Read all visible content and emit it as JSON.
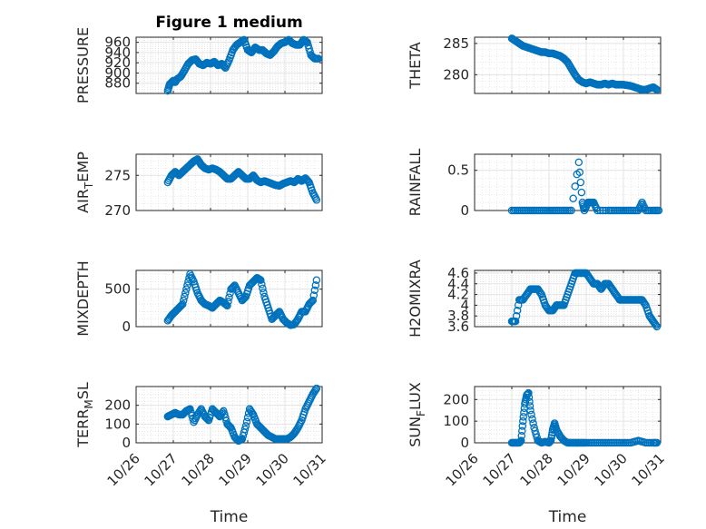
{
  "chart_data": {
    "type": "scatter",
    "title": "Figure 1 medium",
    "marker_color": "#0072BD",
    "xlabel": "Time",
    "x_tick_labels": [
      "10/26",
      "10/27",
      "10/28",
      "10/29",
      "10/30",
      "10/31"
    ],
    "xlim": [
      26,
      31
    ],
    "grid": true,
    "subplots": [
      {
        "id": "pressure",
        "ylabel": "PRESSURE",
        "ylim": [
          860,
          970
        ],
        "yticks": [
          880,
          900,
          920,
          940,
          960
        ],
        "x": [
          26.85,
          26.9,
          27.0,
          27.05,
          27.1,
          27.2,
          27.3,
          27.4,
          27.5,
          27.6,
          27.7,
          27.8,
          27.9,
          28.0,
          28.1,
          28.2,
          28.3,
          28.4,
          28.5,
          28.6,
          28.7,
          28.8,
          28.9,
          29.0,
          29.1,
          29.2,
          29.3,
          29.4,
          29.5,
          29.6,
          29.7,
          29.8,
          29.9,
          30.0,
          30.1,
          30.2,
          30.3,
          30.4,
          30.5,
          30.6,
          30.7,
          30.8,
          30.9
        ],
        "y": [
          865,
          878,
          885,
          882,
          888,
          893,
          905,
          918,
          925,
          927,
          918,
          915,
          920,
          918,
          922,
          915,
          918,
          910,
          925,
          945,
          955,
          960,
          965,
          945,
          940,
          950,
          945,
          945,
          938,
          935,
          942,
          952,
          958,
          960,
          965,
          958,
          955,
          955,
          965,
          960,
          935,
          928,
          928
        ]
      },
      {
        "id": "theta",
        "ylabel": "THETA",
        "ylim": [
          277,
          286
        ],
        "yticks": [
          280,
          285
        ],
        "x": [
          27.0,
          27.1,
          27.2,
          27.3,
          27.4,
          27.5,
          27.6,
          27.7,
          27.8,
          27.9,
          28.0,
          28.1,
          28.2,
          28.3,
          28.4,
          28.5,
          28.6,
          28.7,
          28.8,
          28.9,
          29.0,
          29.1,
          29.2,
          29.3,
          29.4,
          29.5,
          29.6,
          29.7,
          29.8,
          29.9,
          30.0,
          30.1,
          30.2,
          30.3,
          30.4,
          30.5,
          30.6,
          30.7,
          30.8,
          30.9
        ],
        "y": [
          285.8,
          285.4,
          285,
          284.6,
          284.4,
          284.2,
          284,
          283.8,
          283.6,
          283.6,
          283.4,
          283.4,
          283.2,
          283.0,
          282.6,
          282.0,
          281,
          280,
          279.2,
          278.8,
          278.6,
          278.8,
          278.6,
          278.4,
          278.4,
          278.6,
          278.4,
          278.6,
          278.4,
          278.4,
          278.4,
          278.3,
          278.2,
          278,
          277.8,
          277.6,
          277.6,
          277.8,
          278,
          277.6
        ]
      },
      {
        "id": "air_temp",
        "ylabel": "AIRTEMP",
        "ylabel_main": "AIR",
        "ylabel_sub": "T",
        "ylabel_rest": "EMP",
        "ylim": [
          270,
          278
        ],
        "yticks": [
          270,
          275
        ],
        "x": [
          26.85,
          26.95,
          27.05,
          27.15,
          27.25,
          27.35,
          27.45,
          27.55,
          27.65,
          27.75,
          27.85,
          27.95,
          28.05,
          28.15,
          28.25,
          28.35,
          28.45,
          28.55,
          28.65,
          28.75,
          28.85,
          28.95,
          29.05,
          29.15,
          29.25,
          29.35,
          29.45,
          29.55,
          29.65,
          29.75,
          29.85,
          29.95,
          30.05,
          30.15,
          30.25,
          30.35,
          30.45,
          30.55,
          30.65,
          30.75,
          30.85
        ],
        "y": [
          274,
          275,
          275.5,
          275,
          275.5,
          276,
          276.5,
          277,
          277.3,
          276.5,
          276,
          275.8,
          276,
          275.8,
          275.5,
          275,
          274.5,
          274.5,
          275,
          275.5,
          275,
          274.5,
          274.5,
          275,
          274.3,
          274,
          274.2,
          274,
          273.8,
          273.6,
          273.5,
          273.8,
          274,
          274.2,
          274,
          274.5,
          274.2,
          274.6,
          274,
          272.5,
          271.5
        ]
      },
      {
        "id": "rainfall",
        "ylabel": "RAINFALL",
        "ylim": [
          0,
          0.7
        ],
        "yticks": [
          0,
          0.5
        ],
        "x": [
          27.0,
          27.2,
          27.4,
          27.6,
          27.8,
          28.0,
          28.2,
          28.4,
          28.6,
          28.8,
          28.9,
          28.95,
          29.05,
          29.1,
          29.2,
          29.3,
          29.6,
          29.8,
          30.0,
          30.2,
          30.4,
          30.5,
          30.6,
          30.8,
          30.95
        ],
        "y": [
          0,
          0,
          0,
          0,
          0,
          0,
          0,
          0,
          0,
          0.6,
          0.1,
          0,
          0.1,
          0.1,
          0.1,
          0,
          0,
          0,
          0,
          0,
          0,
          0.1,
          0,
          0,
          0
        ]
      },
      {
        "id": "mixdepth",
        "ylabel": "MIXDEPTH",
        "ylim": [
          0,
          750
        ],
        "yticks": [
          0,
          500
        ],
        "x": [
          26.85,
          26.95,
          27.05,
          27.15,
          27.25,
          27.35,
          27.45,
          27.55,
          27.65,
          27.75,
          27.85,
          27.95,
          28.05,
          28.15,
          28.25,
          28.35,
          28.45,
          28.55,
          28.65,
          28.75,
          28.85,
          28.95,
          29.05,
          29.15,
          29.25,
          29.35,
          29.45,
          29.55,
          29.65,
          29.75,
          29.85,
          29.95,
          30.05,
          30.15,
          30.25,
          30.35,
          30.45,
          30.55,
          30.65,
          30.75,
          30.85
        ],
        "y": [
          80,
          150,
          200,
          250,
          300,
          500,
          700,
          600,
          450,
          350,
          300,
          280,
          250,
          300,
          350,
          320,
          280,
          500,
          550,
          450,
          350,
          400,
          550,
          600,
          650,
          620,
          400,
          250,
          100,
          150,
          200,
          100,
          50,
          20,
          30,
          100,
          200,
          200,
          300,
          350,
          620
        ]
      },
      {
        "id": "h2omixra",
        "ylabel": "H2OMIXRA",
        "ylim": [
          3.6,
          4.65
        ],
        "yticks": [
          3.6,
          3.8,
          4,
          4.2,
          4.4,
          4.6
        ],
        "x": [
          27.0,
          27.1,
          27.2,
          27.3,
          27.4,
          27.5,
          27.6,
          27.7,
          27.8,
          27.9,
          28.0,
          28.1,
          28.2,
          28.3,
          28.4,
          28.5,
          28.6,
          28.7,
          28.8,
          28.9,
          29.0,
          29.1,
          29.2,
          29.3,
          29.4,
          29.5,
          29.6,
          29.7,
          29.8,
          29.9,
          30.0,
          30.1,
          30.2,
          30.3,
          30.4,
          30.5,
          30.6,
          30.7,
          30.8,
          30.9
        ],
        "y": [
          3.7,
          3.7,
          4.1,
          4.1,
          4.2,
          4.3,
          4.3,
          4.3,
          4.2,
          4.0,
          3.9,
          3.9,
          4.0,
          4.0,
          4.0,
          4.2,
          4.4,
          4.6,
          4.6,
          4.6,
          4.6,
          4.5,
          4.4,
          4.4,
          4.3,
          4.4,
          4.4,
          4.3,
          4.2,
          4.1,
          4.1,
          4.1,
          4.1,
          4.1,
          4.1,
          4.1,
          4.0,
          3.8,
          3.7,
          3.6
        ]
      },
      {
        "id": "terr_msl",
        "ylabel": "TERRMSL",
        "ylabel_main": "TERR",
        "ylabel_sub": "M",
        "ylabel_rest": "SL",
        "ylim": [
          0,
          300
        ],
        "yticks": [
          0,
          100,
          200
        ],
        "x": [
          26.85,
          26.95,
          27.05,
          27.15,
          27.25,
          27.35,
          27.45,
          27.55,
          27.65,
          27.75,
          27.85,
          27.95,
          28.05,
          28.15,
          28.25,
          28.35,
          28.45,
          28.55,
          28.65,
          28.75,
          28.85,
          28.95,
          29.05,
          29.15,
          29.25,
          29.35,
          29.45,
          29.55,
          29.65,
          29.75,
          29.85,
          29.95,
          30.05,
          30.15,
          30.25,
          30.35,
          30.45,
          30.55,
          30.65,
          30.75,
          30.85
        ],
        "y": [
          140,
          150,
          160,
          150,
          150,
          170,
          180,
          110,
          150,
          180,
          140,
          120,
          180,
          160,
          140,
          170,
          100,
          80,
          30,
          10,
          20,
          90,
          180,
          150,
          100,
          80,
          60,
          40,
          30,
          20,
          20,
          20,
          20,
          30,
          50,
          80,
          120,
          180,
          220,
          260,
          290
        ]
      },
      {
        "id": "sun_flux",
        "ylabel": "SUNFLUX",
        "ylabel_main": "SUN",
        "ylabel_sub": "F",
        "ylabel_rest": "LUX",
        "ylim": [
          0,
          260
        ],
        "yticks": [
          0,
          100,
          200
        ],
        "x": [
          27.0,
          27.1,
          27.2,
          27.25,
          27.3,
          27.35,
          27.4,
          27.45,
          27.5,
          27.6,
          27.7,
          27.8,
          27.9,
          28.0,
          28.05,
          28.1,
          28.15,
          28.2,
          28.3,
          28.4,
          28.5,
          28.6,
          28.7,
          28.8,
          28.9,
          29.0,
          29.2,
          29.4,
          29.6,
          29.8,
          30.0,
          30.2,
          30.4,
          30.6,
          30.8,
          30.9
        ],
        "y": [
          0,
          0,
          0,
          10,
          100,
          180,
          220,
          230,
          150,
          70,
          10,
          0,
          5,
          0,
          10,
          60,
          90,
          60,
          30,
          10,
          0,
          0,
          0,
          0,
          0,
          0,
          0,
          0,
          0,
          0,
          0,
          0,
          10,
          0,
          0,
          0
        ]
      }
    ]
  }
}
